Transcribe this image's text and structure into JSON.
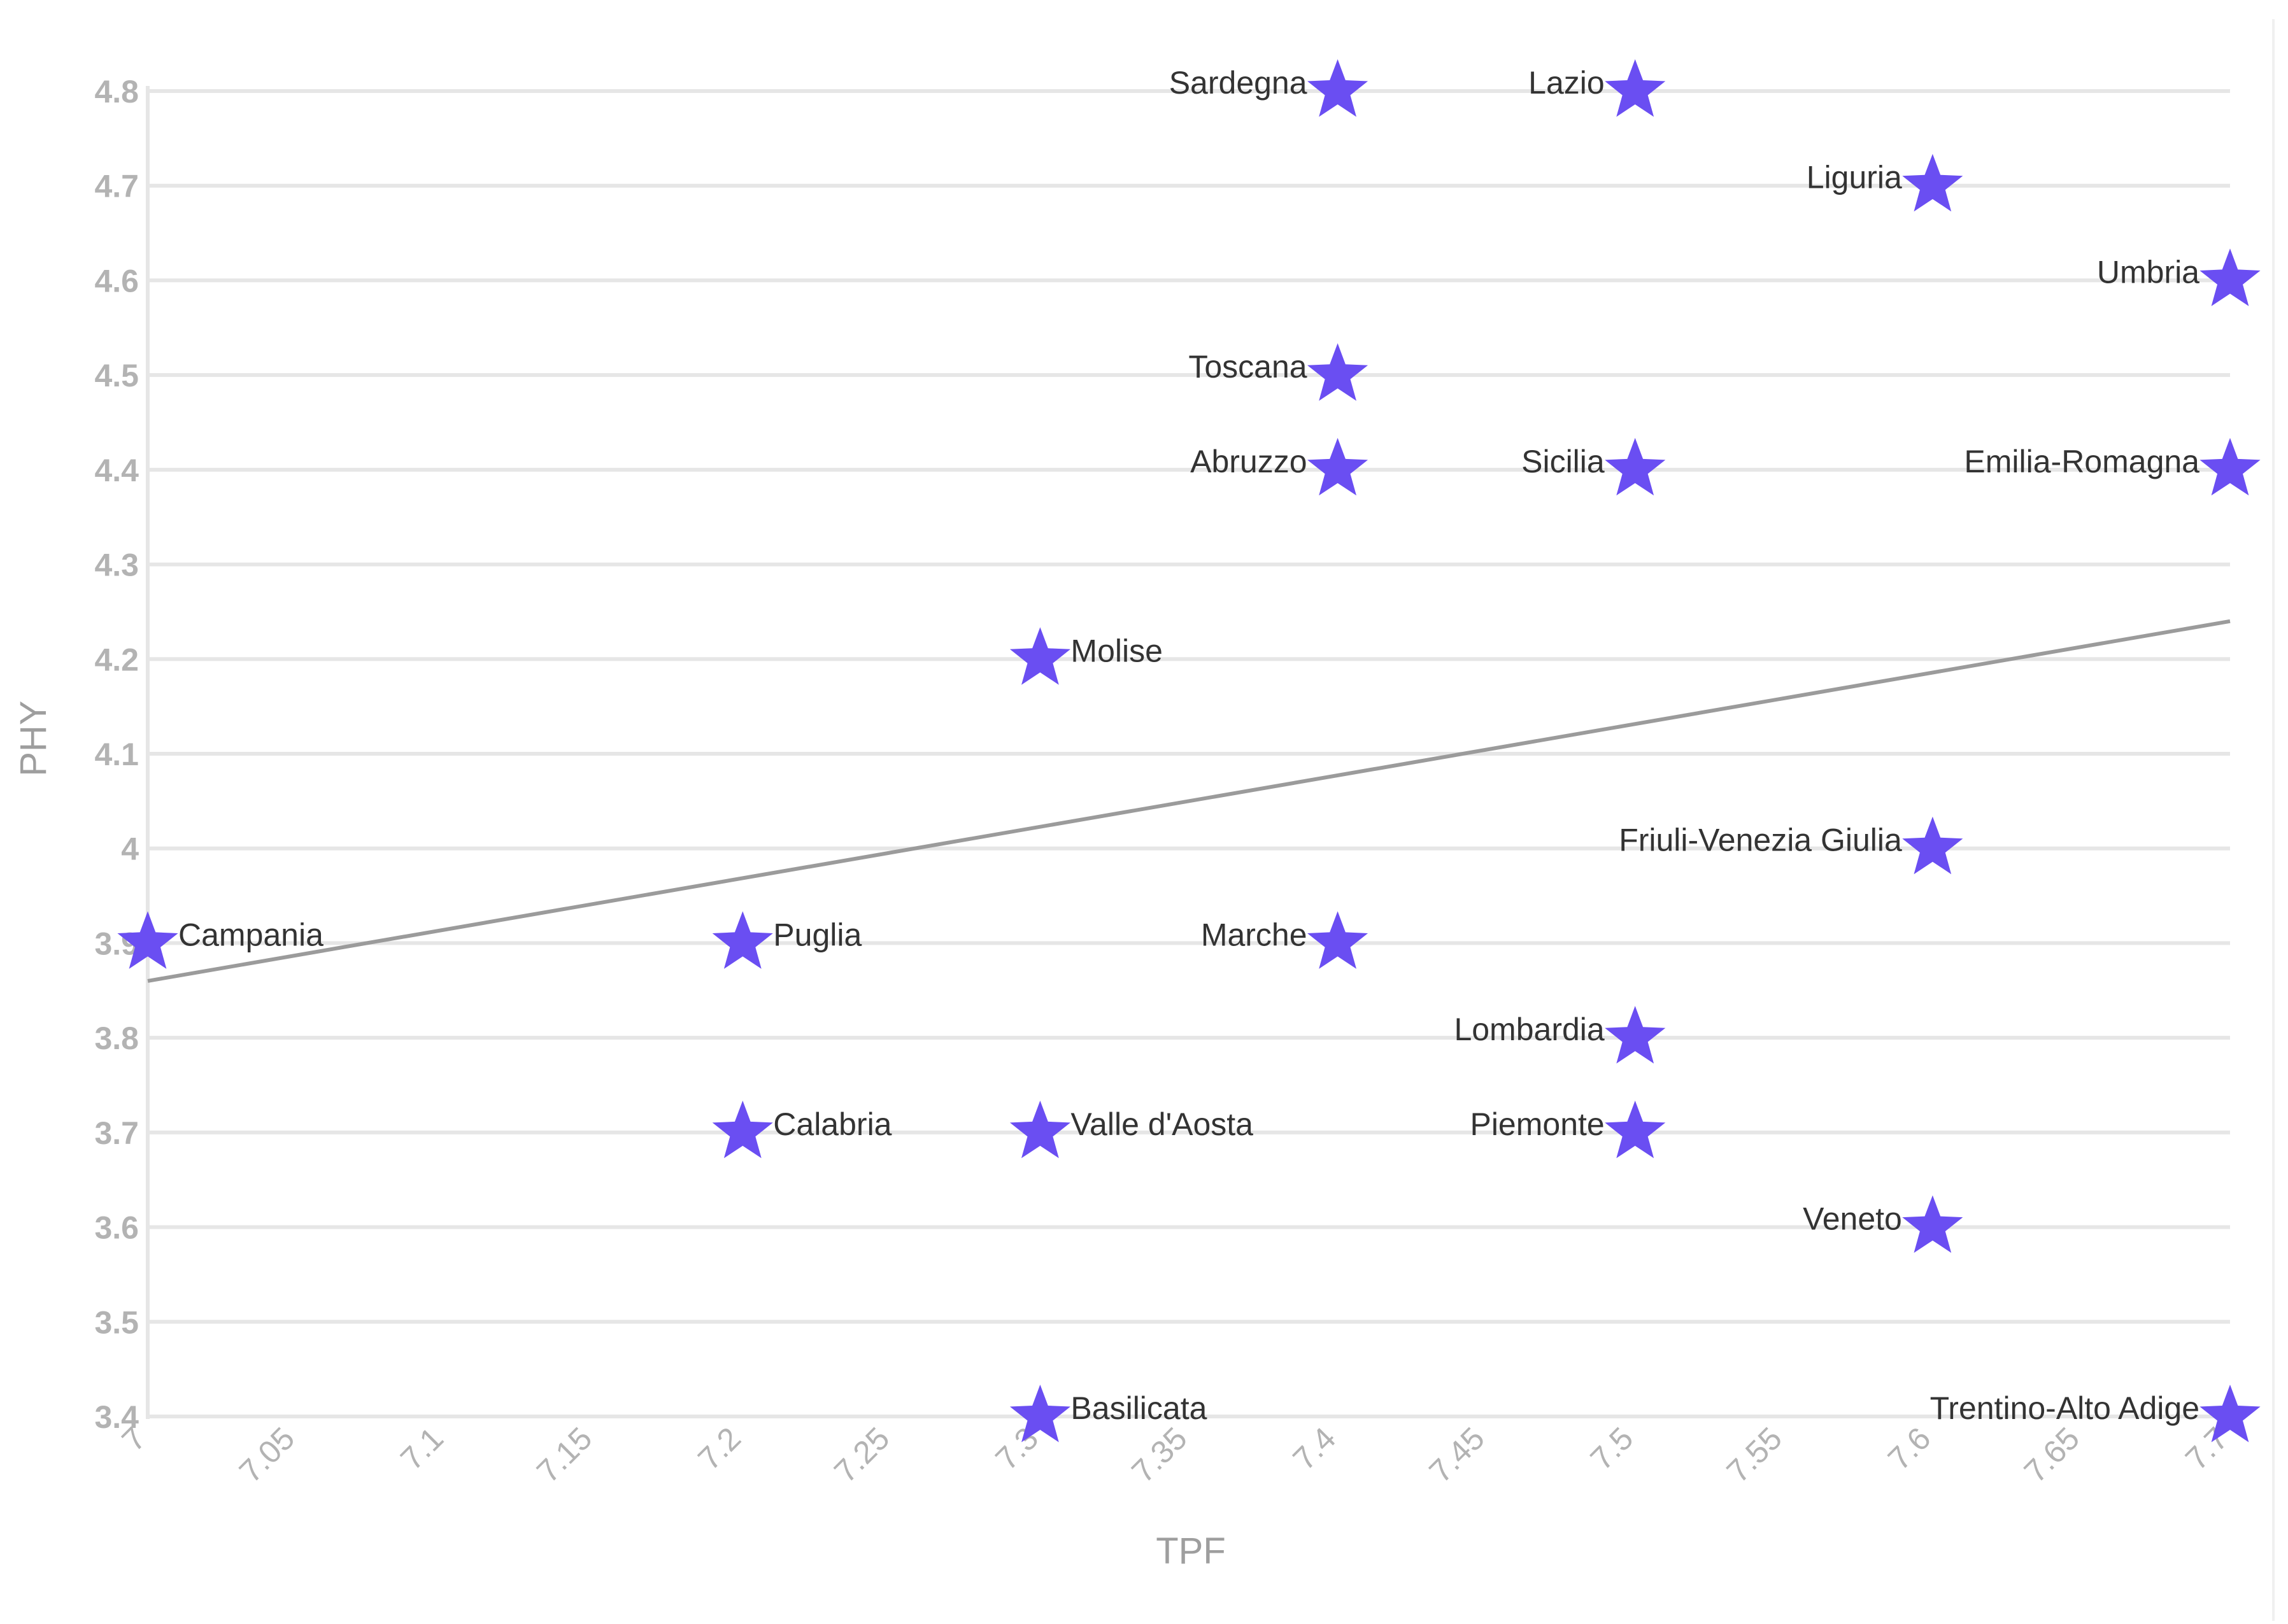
{
  "chart_data": {
    "type": "scatter",
    "xlabel": "TPF",
    "ylabel": "PHY",
    "xlim": [
      7,
      7.7
    ],
    "ylim": [
      3.4,
      4.8
    ],
    "x_ticks": [
      "7",
      "7.05",
      "7.1",
      "7.15",
      "7.2",
      "7.25",
      "7.3",
      "7.35",
      "7.4",
      "7.45",
      "7.5",
      "7.55",
      "7.6",
      "7.65",
      "7.7"
    ],
    "y_ticks": [
      "3.4",
      "3.5",
      "3.6",
      "3.7",
      "3.8",
      "3.9",
      "4",
      "4.1",
      "4.2",
      "4.3",
      "4.4",
      "4.5",
      "4.6",
      "4.7",
      "4.8"
    ],
    "grid": true,
    "marker": "star",
    "marker_color": "#6a4ef2",
    "trendline": {
      "color": "#9b9b9b",
      "points": [
        [
          7,
          3.86
        ],
        [
          7.7,
          4.24
        ]
      ]
    },
    "points": [
      {
        "label": "Sardegna",
        "x": 7.4,
        "y": 4.8
      },
      {
        "label": "Lazio",
        "x": 7.5,
        "y": 4.8
      },
      {
        "label": "Liguria",
        "x": 7.6,
        "y": 4.7
      },
      {
        "label": "Umbria",
        "x": 7.7,
        "y": 4.6
      },
      {
        "label": "Toscana",
        "x": 7.4,
        "y": 4.5
      },
      {
        "label": "Abruzzo",
        "x": 7.4,
        "y": 4.4
      },
      {
        "label": "Sicilia",
        "x": 7.5,
        "y": 4.4
      },
      {
        "label": "Emilia-Romagna",
        "x": 7.7,
        "y": 4.4
      },
      {
        "label": "Molise",
        "x": 7.3,
        "y": 4.2
      },
      {
        "label": "Friuli-Venezia Giulia",
        "x": 7.6,
        "y": 4.0
      },
      {
        "label": "Campania",
        "x": 7.0,
        "y": 3.9
      },
      {
        "label": "Puglia",
        "x": 7.2,
        "y": 3.9
      },
      {
        "label": "Marche",
        "x": 7.4,
        "y": 3.9
      },
      {
        "label": "Lombardia",
        "x": 7.5,
        "y": 3.8
      },
      {
        "label": "Calabria",
        "x": 7.2,
        "y": 3.7
      },
      {
        "label": "Valle d'Aosta",
        "x": 7.3,
        "y": 3.7
      },
      {
        "label": "Piemonte",
        "x": 7.5,
        "y": 3.7
      },
      {
        "label": "Veneto",
        "x": 7.6,
        "y": 3.6
      },
      {
        "label": "Basilicata",
        "x": 7.3,
        "y": 3.4
      },
      {
        "label": "Trentino-Alto Adige",
        "x": 7.7,
        "y": 3.4
      }
    ]
  }
}
